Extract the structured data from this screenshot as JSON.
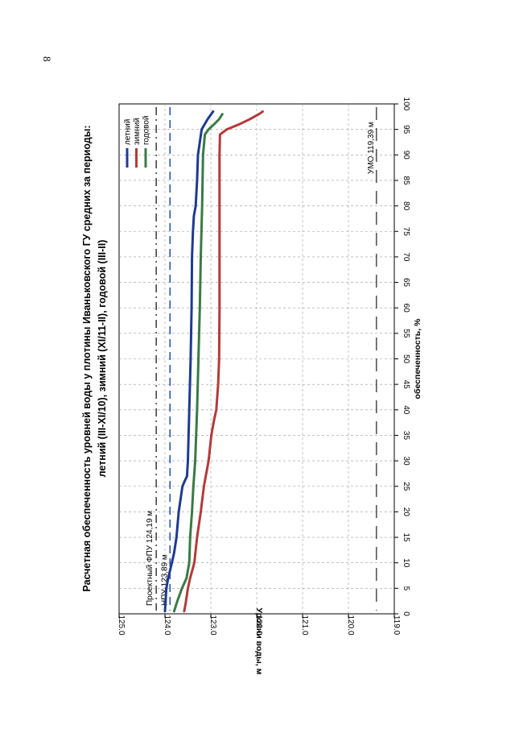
{
  "page_number": "8",
  "chart_data": {
    "type": "line",
    "title_line1": "Расчетная обеспеченность уровней воды у плотины Иваньковского ГУ средних за периоды:",
    "title_line2": "летний (III-XI/10), зимний (XI/11-II), годовой (III-II)",
    "xlabel": "обеспеченность, %",
    "ylabel": "Уровни воды, м",
    "xlim": [
      0,
      100
    ],
    "ylim": [
      119.0,
      125.0
    ],
    "x_ticks": [
      "0",
      "5",
      "10",
      "15",
      "20",
      "25",
      "30",
      "35",
      "40",
      "45",
      "50",
      "55",
      "60",
      "65",
      "70",
      "75",
      "80",
      "85",
      "90",
      "95",
      "100"
    ],
    "y_ticks": [
      "125.0",
      "124.0",
      "123.0",
      "122.0",
      "121.0",
      "120.0",
      "119.0"
    ],
    "legend": [
      "летний",
      "зимний",
      "годовой"
    ],
    "series": [
      {
        "name": "летний",
        "color": "#1f3a8f",
        "x": [
          0.5,
          2,
          5,
          7,
          10,
          12,
          15,
          20,
          25,
          26,
          27,
          30,
          40,
          50,
          60,
          70,
          75,
          78,
          80,
          85,
          90,
          95,
          97,
          98.5
        ],
        "y": [
          124.0,
          123.99,
          123.97,
          123.93,
          123.85,
          123.8,
          123.75,
          123.7,
          123.62,
          123.57,
          123.52,
          123.5,
          123.47,
          123.44,
          123.42,
          123.41,
          123.39,
          123.37,
          123.33,
          123.3,
          123.28,
          123.2,
          123.07,
          122.95
        ]
      },
      {
        "name": "зимний",
        "color": "#b23b3b",
        "x": [
          0.5,
          2,
          5,
          7,
          10,
          15,
          20,
          25,
          30,
          35,
          38,
          40,
          45,
          50,
          60,
          70,
          80,
          90,
          94,
          95,
          96,
          97,
          98,
          98.5
        ],
        "y": [
          123.58,
          123.55,
          123.5,
          123.45,
          123.36,
          123.3,
          123.22,
          123.15,
          123.05,
          122.99,
          122.93,
          122.88,
          122.84,
          122.82,
          122.81,
          122.81,
          122.81,
          122.81,
          122.8,
          122.65,
          122.38,
          122.15,
          121.95,
          121.87
        ]
      },
      {
        "name": "годовой",
        "color": "#3a7a44",
        "x": [
          0.5,
          2,
          5,
          7,
          10,
          15,
          20,
          25,
          30,
          40,
          50,
          60,
          70,
          80,
          90,
          94,
          95,
          96,
          97,
          98
        ],
        "y": [
          123.8,
          123.75,
          123.63,
          123.53,
          123.47,
          123.45,
          123.41,
          123.38,
          123.34,
          123.3,
          123.27,
          123.24,
          123.22,
          123.19,
          123.17,
          123.13,
          123.05,
          122.93,
          122.82,
          122.75
        ]
      }
    ],
    "reference_lines": [
      {
        "name": "Проектный ФПУ",
        "value": 124.19,
        "label": "Проектный ФПУ 124,19 м",
        "style": "dashdot",
        "color": "#444444"
      },
      {
        "name": "НПУ",
        "value": 123.89,
        "label": "НПУ 123,89 м",
        "style": "dash",
        "color": "#2f55b0"
      },
      {
        "name": "УМО",
        "value": 119.39,
        "label": "УМО 119,39 м",
        "style": "longdash",
        "color": "#555555"
      }
    ]
  }
}
